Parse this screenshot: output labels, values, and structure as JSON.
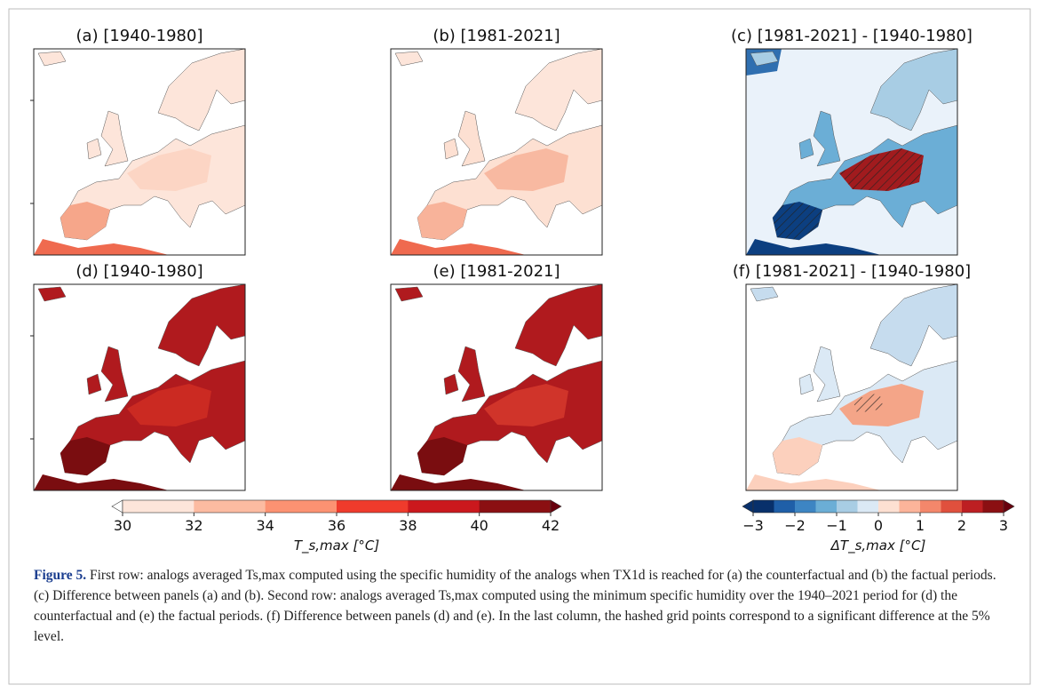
{
  "panels": [
    {
      "title": "(a) [1940-1980]"
    },
    {
      "title": "(b) [1981-2021]"
    },
    {
      "title": "(c) [1981-2021] - [1940-1980]"
    },
    {
      "title": "(d) [1940-1980]"
    },
    {
      "title": "(e) [1981-2021]"
    },
    {
      "title": "(f) [1981-2021] - [1940-1980]"
    }
  ],
  "colorbars": [
    {
      "label": "T_s,max [°C]",
      "lim": [
        30,
        42
      ],
      "ticks": [
        30,
        32,
        34,
        36,
        38,
        40,
        42
      ],
      "colors": [
        "#fde5da",
        "#fcbba1",
        "#fc9272",
        "#ef3b2c",
        "#cb181d",
        "#8b0f12"
      ],
      "under_color": "#ffffff",
      "over_color": "#67000d"
    },
    {
      "label": "ΔT_s,max [°C]",
      "lim": [
        -3,
        3
      ],
      "ticks": [
        {
          "value": -3,
          "label": "−3"
        },
        {
          "value": -2,
          "label": "−2"
        },
        {
          "value": -1,
          "label": "−1"
        },
        0,
        1,
        2,
        3
      ],
      "colors": [
        "#08306b",
        "#1f5fa8",
        "#3d85c3",
        "#6baed6",
        "#a8cde4",
        "#dbe9f5",
        "#fde0d2",
        "#fcb49a",
        "#f4876b",
        "#e0503d",
        "#bd1f22",
        "#8b0f12"
      ],
      "under_color": "#08306b",
      "over_color": "#67000d"
    }
  ],
  "caption": {
    "label": "Figure 5.",
    "text": "First row: analogs averaged Ts,max computed using the specific humidity of the analogs when TX1d is reached for (a) the counterfactual and (b) the factual periods. (c) Difference between panels (a) and (b). Second row: analogs averaged Ts,max computed using the minimum specific humidity over the 1940–2021 period for (d) the counterfactual and (e) the factual periods. (f) Difference between panels (d) and (e). In the last column, the hashed grid points correspond to a significant difference at the 5% level."
  }
}
